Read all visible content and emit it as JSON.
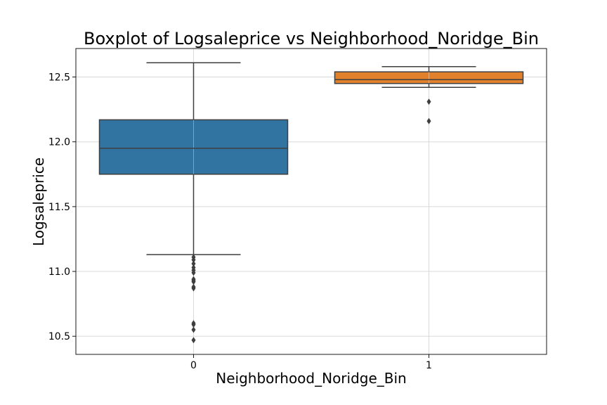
{
  "chart_data": {
    "type": "boxplot",
    "title": "Boxplot of Logsaleprice vs Neighborhood_Noridge_Bin",
    "xlabel": "Neighborhood_Noridge_Bin",
    "ylabel": "Logsaleprice",
    "ylim": [
      10.36,
      12.72
    ],
    "yticks": [
      10.5,
      11.0,
      11.5,
      12.0,
      12.5
    ],
    "ytick_labels": [
      "10.5",
      "11.0",
      "11.5",
      "12.0",
      "12.5"
    ],
    "grid": true,
    "categories": [
      "0",
      "1"
    ],
    "boxes": [
      {
        "category": "0",
        "color": "#3274a1",
        "whisker_low": 11.13,
        "q1": 11.75,
        "median": 11.95,
        "q3": 12.17,
        "whisker_high": 12.61,
        "outliers": [
          11.11,
          11.09,
          11.06,
          11.03,
          11.01,
          10.99,
          10.94,
          10.93,
          10.92,
          10.88,
          10.87,
          10.6,
          10.59,
          10.55,
          10.47
        ]
      },
      {
        "category": "1",
        "color": "#e1812c",
        "whisker_low": 12.42,
        "q1": 12.45,
        "median": 12.48,
        "q3": 12.54,
        "whisker_high": 12.58,
        "outliers": [
          12.31,
          12.16
        ]
      }
    ]
  }
}
